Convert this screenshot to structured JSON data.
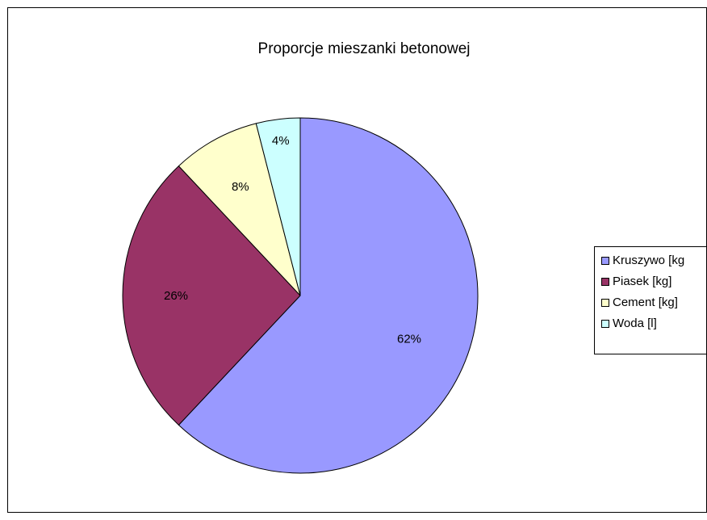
{
  "chart_data": {
    "type": "pie",
    "title": "Proporcje mieszanki betonowej",
    "categories": [
      "Kruszywo [kg",
      "Piasek [kg]",
      "Cement [kg]",
      "Woda [l]"
    ],
    "values": [
      62,
      26,
      8,
      4
    ],
    "value_labels": [
      "62%",
      "26%",
      "8%",
      "4%"
    ],
    "colors": [
      "#9999FF",
      "#993366",
      "#FFFFCC",
      "#CCFFFF"
    ],
    "start_angle_deg": 0,
    "direction": "clockwise",
    "legend": "right"
  }
}
